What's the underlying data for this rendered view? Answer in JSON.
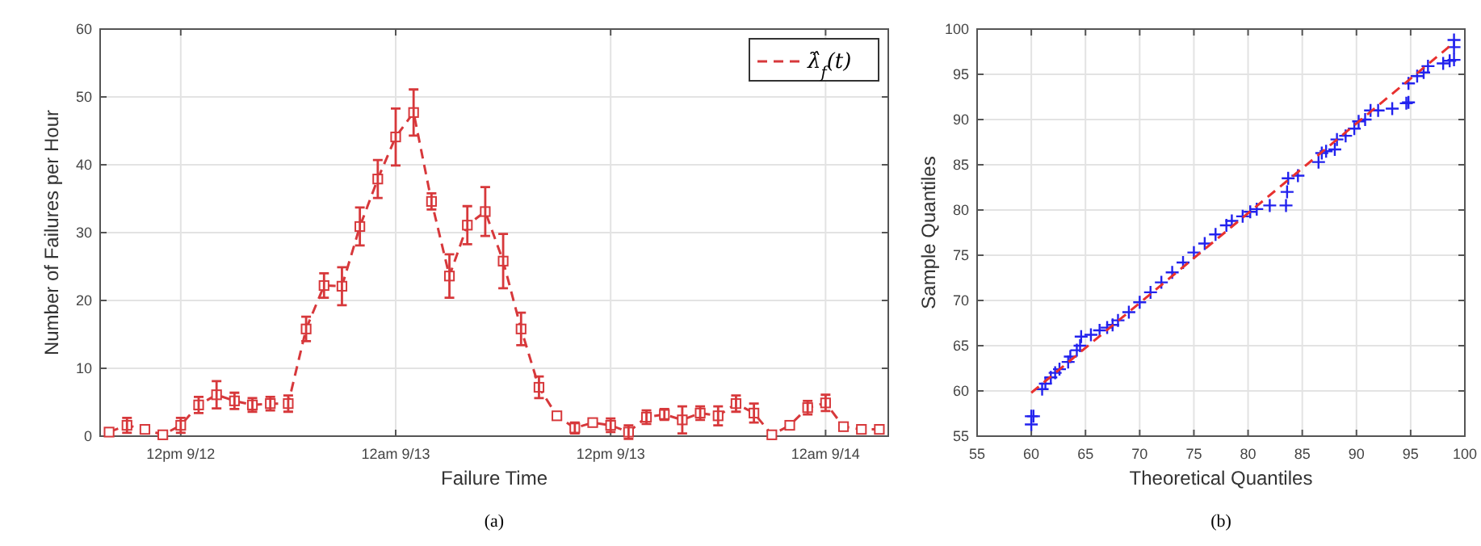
{
  "chart_data": [
    {
      "type": "line",
      "xlabel": "Failure Time",
      "ylabel": "Number of Failures per Hour",
      "annotations": [
        "(a)"
      ],
      "ylim": [
        0,
        60
      ],
      "categories": [
        null,
        null,
        null,
        null,
        "12pm 9/12",
        null,
        null,
        null,
        null,
        null,
        null,
        null,
        null,
        null,
        null,
        null,
        "12am 9/13",
        null,
        null,
        null,
        null,
        null,
        null,
        null,
        null,
        null,
        null,
        null,
        "12pm 9/13",
        null,
        null,
        null,
        null,
        null,
        null,
        null,
        null,
        null,
        null,
        null,
        "12am 9/14",
        null,
        null,
        null
      ],
      "yticks": [
        0,
        10,
        20,
        30,
        40,
        50,
        60
      ],
      "grid": true,
      "legend": "top right",
      "marker": "square",
      "line_style": "dashed",
      "series": [
        {
          "name": "λ̂$_{f}$(t)",
          "color": "#d7383b",
          "values": [
            0.6,
            1.6,
            1.0,
            0.2,
            1.6,
            4.6,
            6.1,
            5.2,
            4.6,
            4.8,
            4.8,
            15.8,
            22.2,
            22.1,
            30.9,
            37.9,
            44.1,
            47.7,
            34.6,
            23.6,
            31.1,
            33.1,
            25.8,
            15.8,
            7.2,
            3.0,
            1.2,
            2.0,
            1.6,
            0.6,
            2.8,
            3.2,
            2.4,
            3.4,
            3.0,
            4.8,
            3.4,
            0.2,
            1.6,
            4.2,
            4.9,
            1.4,
            1.0,
            1.0
          ],
          "errors": [
            null,
            1.1,
            null,
            null,
            1.1,
            1.2,
            2,
            1.2,
            1,
            1,
            1.2,
            1.8,
            1.8,
            2.8,
            2.8,
            2.8,
            4.2,
            3.4,
            1.2,
            3.2,
            2.8,
            3.6,
            4,
            2.4,
            1.6,
            null,
            0.8,
            null,
            1,
            1,
            1,
            0.8,
            2,
            1,
            1.4,
            1.2,
            1.4,
            null,
            null,
            1,
            1.2,
            null,
            null,
            null
          ]
        }
      ]
    },
    {
      "type": "scatter",
      "xlabel": "Theoretical Quantiles",
      "ylabel": "Sample Quantiles",
      "annotations": [
        "(b)"
      ],
      "xlim": [
        55,
        100
      ],
      "ylim": [
        55,
        100
      ],
      "xticks": [
        55,
        60,
        65,
        70,
        75,
        80,
        85,
        90,
        95,
        100
      ],
      "yticks": [
        55,
        60,
        65,
        70,
        75,
        80,
        85,
        90,
        95,
        100
      ],
      "grid": true,
      "marker": "cross",
      "series": [
        {
          "color": "#2222ee",
          "x": [
            60,
            60,
            60.2,
            61,
            61.3,
            61.8,
            62.2,
            62.6,
            63.4,
            63.6,
            64.2,
            64.5,
            64.6,
            65.5,
            66.3,
            67,
            67.5,
            68,
            69,
            70,
            71,
            72,
            73,
            74,
            75,
            76,
            77,
            78,
            78.5,
            79.5,
            80.2,
            80.8,
            82,
            83.5,
            83.6,
            83.7,
            84.6,
            86.5,
            86.8,
            87.2,
            88,
            88.2,
            89,
            89.8,
            90.2,
            90.8,
            91.3,
            92,
            93.3,
            94.6,
            94.8,
            94.8,
            95.6,
            96.2,
            96.6,
            98,
            98.6,
            99,
            99,
            99
          ],
          "values": [
            56.3,
            57.2,
            57.2,
            60.2,
            60.8,
            61.5,
            62,
            62.4,
            63.2,
            63.8,
            64.5,
            65,
            66,
            66.2,
            66.7,
            67,
            67.3,
            67.8,
            68.7,
            69.8,
            70.9,
            72,
            73.1,
            74.2,
            75.3,
            76.3,
            77.3,
            78.3,
            78.8,
            79.3,
            79.8,
            80.1,
            80.5,
            80.5,
            82,
            83.5,
            83.8,
            85.3,
            86.3,
            86.5,
            86.7,
            87.8,
            88.2,
            89,
            89.8,
            90,
            91,
            91,
            91.2,
            91.8,
            91.9,
            94,
            94.8,
            95.2,
            95.9,
            96.2,
            96.5,
            96.6,
            98,
            98.8
          ]
        },
        {
          "type": "line",
          "color": "#e8312f",
          "line_style": "dashed",
          "marker": "none",
          "x": [
            60,
            99
          ],
          "values": [
            59.8,
            98.5
          ]
        }
      ]
    }
  ]
}
